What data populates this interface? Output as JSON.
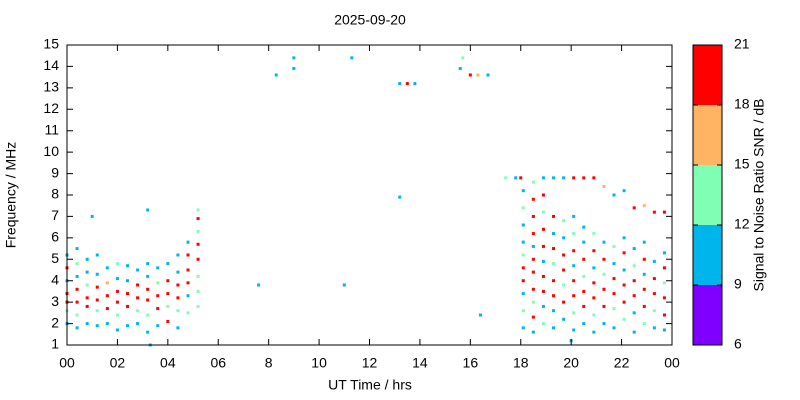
{
  "chart_data": {
    "type": "scatter",
    "title": "2025-09-20",
    "x_label": "UT Time / hrs",
    "y_label": "Frequency / MHz",
    "xlim": [
      0,
      24
    ],
    "ylim": [
      1,
      15
    ],
    "xticks": [
      {
        "value": 0,
        "label": "00"
      },
      {
        "value": 2,
        "label": "02"
      },
      {
        "value": 4,
        "label": "04"
      },
      {
        "value": 6,
        "label": "06"
      },
      8,
      10,
      12,
      14,
      16,
      18,
      20,
      22,
      {
        "value": 24,
        "label": "00"
      }
    ],
    "yticks": [
      1,
      2,
      3,
      4,
      5,
      6,
      7,
      8,
      9,
      10,
      11,
      12,
      13,
      14,
      15
    ],
    "colorbar": {
      "label": "Signal to Noise Ratio SNR / dB",
      "ticks": [
        6,
        9,
        12,
        15,
        18,
        21
      ],
      "colors": [
        "#8000ff",
        "#00b4ec",
        "#80ffb4",
        "#ffb464",
        "#ff0000"
      ]
    },
    "x": [
      0,
      0,
      0,
      0,
      0,
      0,
      0,
      0.4,
      0.4,
      0.4,
      0.4,
      0.4,
      0.4,
      0.4,
      0.8,
      0.8,
      0.8,
      0.8,
      0.8,
      0.8,
      1,
      1.2,
      1.2,
      1.2,
      1.2,
      1.2,
      1.2,
      1.6,
      1.6,
      1.6,
      1.6,
      1.6,
      2,
      2,
      2,
      2,
      2,
      2,
      2.4,
      2.4,
      2.4,
      2.4,
      2.4,
      2.8,
      2.8,
      2.8,
      2.8,
      2.8,
      3.2,
      3.2,
      3.2,
      3.2,
      3.2,
      3.2,
      3.2,
      3.3,
      3.6,
      3.6,
      3.6,
      3.6,
      3.6,
      4,
      4,
      4,
      4,
      4,
      4.4,
      4.4,
      4.4,
      4.4,
      4.4,
      4.4,
      4.8,
      4.8,
      4.8,
      4.8,
      4.8,
      4.8,
      5.2,
      5.2,
      5.2,
      5.2,
      5.2,
      5.2,
      5.2,
      5.2,
      7.6,
      8.3,
      9,
      9,
      11,
      11.3,
      13.2,
      13.2,
      13.5,
      13.8,
      15.6,
      15.7,
      16,
      16.3,
      16.4,
      16.7,
      17.4,
      17.8,
      18,
      18.1,
      18.1,
      18.1,
      18.1,
      18.1,
      18.1,
      18.1,
      18.1,
      18.1,
      18.1,
      18.5,
      18.5,
      18.5,
      18.5,
      18.5,
      18.5,
      18.5,
      18.5,
      18.5,
      18.5,
      18.5,
      18.9,
      18.9,
      18.9,
      18.9,
      18.9,
      18.9,
      18.9,
      18.9,
      18.9,
      18.9,
      19.3,
      19.3,
      19.3,
      19.3,
      19.3,
      19.3,
      19.3,
      19.3,
      19.3,
      19.7,
      19.7,
      19.7,
      19.7,
      19.7,
      19.7,
      19.7,
      19.7,
      20,
      20.1,
      20.1,
      20.1,
      20.1,
      20.1,
      20.1,
      20.1,
      20.1,
      20.1,
      20.5,
      20.5,
      20.5,
      20.5,
      20.5,
      20.5,
      20.5,
      20.5,
      20.9,
      20.9,
      20.9,
      20.9,
      20.9,
      20.9,
      20.9,
      20.9,
      21.3,
      21.3,
      21.3,
      21.3,
      21.3,
      21.3,
      21.3,
      21.7,
      21.7,
      21.7,
      21.7,
      21.7,
      21.7,
      21.7,
      22.1,
      22.1,
      22.1,
      22.1,
      22.1,
      22.1,
      22.1,
      22.5,
      22.5,
      22.5,
      22.5,
      22.5,
      22.5,
      22.5,
      22.9,
      22.9,
      22.9,
      22.9,
      22.9,
      22.9,
      22.9,
      23.3,
      23.3,
      23.3,
      23.3,
      23.3,
      23.3,
      23.7,
      23.7,
      23.7,
      23.7,
      23.7,
      23.7,
      23.7
    ],
    "values": [
      2,
      2.6,
      3,
      3.4,
      4,
      4.6,
      5.2,
      1.8,
      2.4,
      3,
      3.6,
      4.2,
      4.8,
      5.5,
      2,
      2.8,
      3.2,
      3.8,
      4.4,
      5,
      7,
      1.9,
      2.6,
      3.1,
      3.7,
      4.3,
      5.2,
      2,
      2.7,
      3.3,
      3.9,
      4.6,
      1.7,
      2.4,
      3,
      3.5,
      4.1,
      4.8,
      1.9,
      2.8,
      3.4,
      4,
      4.7,
      2,
      2.6,
      3.2,
      3.8,
      4.5,
      1.6,
      2.4,
      3.1,
      3.6,
      4.2,
      4.8,
      7.3,
      1,
      1.9,
      2.7,
      3.3,
      3.9,
      4.6,
      2.1,
      2.8,
      3.4,
      4,
      4.8,
      1.8,
      2.6,
      3.2,
      3.8,
      4.4,
      5.2,
      2.5,
      3.3,
      3.9,
      4.5,
      5.2,
      5.8,
      2.8,
      3.5,
      4.2,
      5,
      5.7,
      6.3,
      6.9,
      7.3,
      3.8,
      13.6,
      13.9,
      14.4,
      3.8,
      14.4,
      7.9,
      13.2,
      13.2,
      13.2,
      13.9,
      14.4,
      13.6,
      13.6,
      2.4,
      13.6,
      8.8,
      8.8,
      8.8,
      1.8,
      2.6,
      3.4,
      4,
      4.6,
      5.2,
      5.8,
      6.6,
      7.4,
      8.2,
      1.6,
      2.3,
      3,
      3.6,
      4.4,
      5,
      5.6,
      6.2,
      7,
      7.8,
      8.6,
      2,
      2.8,
      3.5,
      4.2,
      4.9,
      5.6,
      6.4,
      7.2,
      8,
      8.8,
      1.8,
      2.6,
      3.3,
      4,
      4.8,
      5.5,
      6.2,
      7,
      8.8,
      2.2,
      3,
      3.8,
      4.5,
      5.2,
      6,
      6.8,
      8.8,
      1.2,
      1.7,
      2.5,
      3.3,
      4,
      4.7,
      5.4,
      6.2,
      7,
      8.8,
      2,
      2.8,
      3.5,
      4.2,
      5,
      5.8,
      6.5,
      8.8,
      1.6,
      2.4,
      3.2,
      3.9,
      4.6,
      5.4,
      6.2,
      8.8,
      2,
      2.8,
      3.6,
      4.3,
      5,
      5.8,
      8.4,
      1.8,
      2.7,
      3.4,
      4.1,
      4.8,
      5.6,
      8,
      2.2,
      3,
      3.8,
      4.5,
      5.3,
      6,
      8.2,
      1.6,
      2.5,
      3.3,
      4,
      4.7,
      5.5,
      7.4,
      2,
      2.8,
      3.6,
      4.3,
      5,
      5.8,
      7.5,
      1.8,
      2.6,
      3.4,
      4.1,
      4.9,
      7.2,
      1.7,
      2.4,
      3.2,
      3.9,
      4.6,
      5.3,
      7.2
    ],
    "snr": [
      10,
      13,
      19,
      20,
      11,
      19,
      10,
      10,
      13,
      20,
      19,
      10,
      13,
      10,
      10,
      19,
      20,
      13,
      10,
      11,
      10,
      10,
      13,
      20,
      19,
      11,
      10,
      11,
      19,
      20,
      16,
      10,
      10,
      13,
      19,
      20,
      10,
      13,
      10,
      19,
      20,
      11,
      10,
      11,
      13,
      20,
      19,
      10,
      10,
      13,
      19,
      20,
      10,
      11,
      10,
      10,
      10,
      19,
      20,
      13,
      10,
      19,
      13,
      20,
      19,
      10,
      10,
      13,
      19,
      20,
      10,
      11,
      13,
      10,
      19,
      20,
      19,
      10,
      13,
      14,
      13,
      19,
      20,
      13,
      19,
      14,
      10,
      10,
      10,
      10,
      10,
      10,
      10,
      10,
      20,
      10,
      10,
      13,
      20,
      16,
      10,
      10,
      13,
      10,
      20,
      10,
      13,
      10,
      19,
      20,
      13,
      10,
      11,
      13,
      10,
      10,
      19,
      13,
      20,
      19,
      20,
      10,
      20,
      19,
      20,
      13,
      13,
      10,
      19,
      20,
      10,
      19,
      20,
      13,
      19,
      10,
      10,
      11,
      20,
      19,
      13,
      20,
      10,
      19,
      10,
      10,
      19,
      13,
      20,
      19,
      10,
      13,
      10,
      10,
      10,
      13,
      19,
      20,
      10,
      19,
      13,
      11,
      20,
      10,
      19,
      20,
      13,
      19,
      10,
      11,
      20,
      10,
      13,
      20,
      19,
      10,
      20,
      13,
      20,
      11,
      19,
      20,
      13,
      19,
      10,
      16,
      10,
      13,
      20,
      19,
      10,
      13,
      10,
      13,
      19,
      20,
      10,
      19,
      11,
      10,
      10,
      10,
      19,
      20,
      13,
      10,
      20,
      13,
      19,
      20,
      10,
      19,
      11,
      16,
      10,
      13,
      19,
      20,
      10,
      20,
      10,
      19,
      20,
      13,
      19,
      10,
      20
    ]
  }
}
